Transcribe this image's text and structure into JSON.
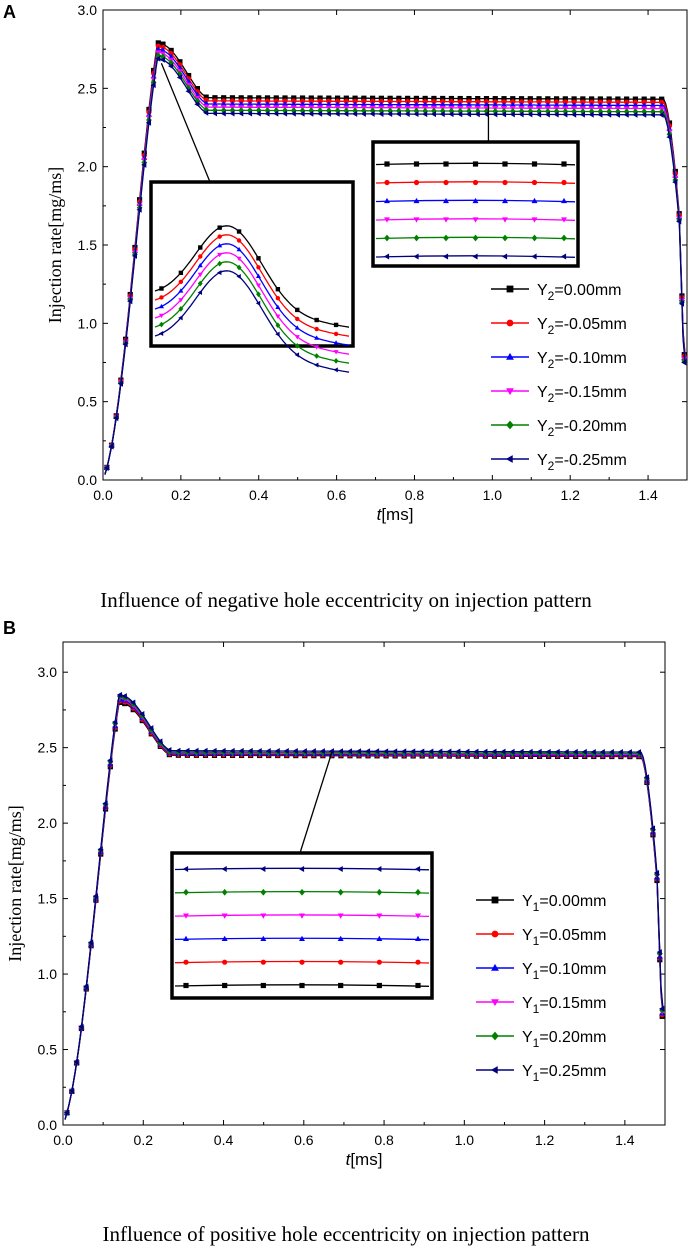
{
  "figure": {
    "panels": [
      {
        "letter": "A",
        "caption": "Influence of negative hole eccentricity on injection pattern"
      },
      {
        "letter": "B",
        "caption": "Influence of positive hole eccentricity on injection pattern"
      }
    ]
  },
  "chart_data": [
    {
      "type": "line",
      "panel": "A",
      "title": "",
      "xlabel_italic": "t",
      "xlabel_rest": "[ms]",
      "ylabel": "Injection rate[mg/ms]",
      "xlim": [
        0.0,
        1.5
      ],
      "ylim": [
        0.0,
        3.0
      ],
      "xticks": [
        0.0,
        0.2,
        0.4,
        0.6,
        0.8,
        1.0,
        1.2,
        1.4
      ],
      "xtick_labels": [
        "0.0",
        "0.2",
        "0.4",
        "0.6",
        "0.8",
        "1.0",
        "1.2",
        "1.4"
      ],
      "yticks": [
        0.0,
        0.5,
        1.0,
        1.5,
        2.0,
        2.5,
        3.0
      ],
      "ytick_labels": [
        "0.0",
        "0.5",
        "1.0",
        "1.5",
        "2.0",
        "2.5",
        "3.0"
      ],
      "legend_position": "right",
      "series": [
        {
          "name_prefix": "Y",
          "name_sub": "2",
          "name_suffix": "=0.00mm",
          "color": "#000000",
          "marker": "square",
          "peak": 2.79,
          "plateau": 2.44,
          "end": 0.8
        },
        {
          "name_prefix": "Y",
          "name_sub": "2",
          "name_suffix": "=-0.05mm",
          "color": "#ff0000",
          "marker": "circle",
          "peak": 2.77,
          "plateau": 2.42,
          "end": 0.79
        },
        {
          "name_prefix": "Y",
          "name_sub": "2",
          "name_suffix": "=-0.10mm",
          "color": "#0000ff",
          "marker": "triangle-up",
          "peak": 2.75,
          "plateau": 2.4,
          "end": 0.78
        },
        {
          "name_prefix": "Y",
          "name_sub": "2",
          "name_suffix": "=-0.15mm",
          "color": "#ff00ff",
          "marker": "triangle-down",
          "peak": 2.73,
          "plateau": 2.38,
          "end": 0.77
        },
        {
          "name_prefix": "Y",
          "name_sub": "2",
          "name_suffix": "=-0.20mm",
          "color": "#008000",
          "marker": "diamond",
          "peak": 2.71,
          "plateau": 2.36,
          "end": 0.76
        },
        {
          "name_prefix": "Y",
          "name_sub": "2",
          "name_suffix": "=-0.25mm",
          "color": "#000080",
          "marker": "triangle-left",
          "peak": 2.69,
          "plateau": 2.34,
          "end": 0.75
        }
      ],
      "insets": [
        {
          "kind": "peak-zoom",
          "target_x": 0.15,
          "target_y": 2.66
        },
        {
          "kind": "plateau-zoom",
          "target_x": 0.99,
          "target_y": 2.4
        }
      ]
    },
    {
      "type": "line",
      "panel": "B",
      "title": "",
      "xlabel_italic": "t",
      "xlabel_rest": "[ms]",
      "ylabel": "Injection rate[mg/ms]",
      "xlim": [
        0.0,
        1.5
      ],
      "ylim": [
        0.0,
        3.2
      ],
      "xticks": [
        0.0,
        0.2,
        0.4,
        0.6,
        0.8,
        1.0,
        1.2,
        1.4
      ],
      "xtick_labels": [
        "0.0",
        "0.2",
        "0.4",
        "0.6",
        "0.8",
        "1.0",
        "1.2",
        "1.4"
      ],
      "yticks": [
        0.0,
        0.5,
        1.0,
        1.5,
        2.0,
        2.5,
        3.0
      ],
      "ytick_labels": [
        "0.0",
        "0.5",
        "1.0",
        "1.5",
        "2.0",
        "2.5",
        "3.0"
      ],
      "legend_position": "right",
      "series": [
        {
          "name_prefix": "Y",
          "name_sub": "1",
          "name_suffix": "=0.00mm",
          "color": "#000000",
          "marker": "square",
          "peak": 2.8,
          "plateau": 2.45,
          "end": 0.72
        },
        {
          "name_prefix": "Y",
          "name_sub": "1",
          "name_suffix": "=0.05mm",
          "color": "#ff0000",
          "marker": "circle",
          "peak": 2.81,
          "plateau": 2.455,
          "end": 0.73
        },
        {
          "name_prefix": "Y",
          "name_sub": "1",
          "name_suffix": "=0.10mm",
          "color": "#0000ff",
          "marker": "triangle-up",
          "peak": 2.82,
          "plateau": 2.46,
          "end": 0.74
        },
        {
          "name_prefix": "Y",
          "name_sub": "1",
          "name_suffix": "=0.15mm",
          "color": "#ff00ff",
          "marker": "triangle-down",
          "peak": 2.83,
          "plateau": 2.465,
          "end": 0.75
        },
        {
          "name_prefix": "Y",
          "name_sub": "1",
          "name_suffix": "=0.20mm",
          "color": "#008000",
          "marker": "diamond",
          "peak": 2.84,
          "plateau": 2.47,
          "end": 0.76
        },
        {
          "name_prefix": "Y",
          "name_sub": "1",
          "name_suffix": "=0.25mm",
          "color": "#000080",
          "marker": "triangle-left",
          "peak": 2.85,
          "plateau": 2.48,
          "end": 0.77
        }
      ],
      "insets": [
        {
          "kind": "plateau-zoom",
          "target_x": 0.67,
          "target_y": 2.47
        }
      ]
    }
  ]
}
